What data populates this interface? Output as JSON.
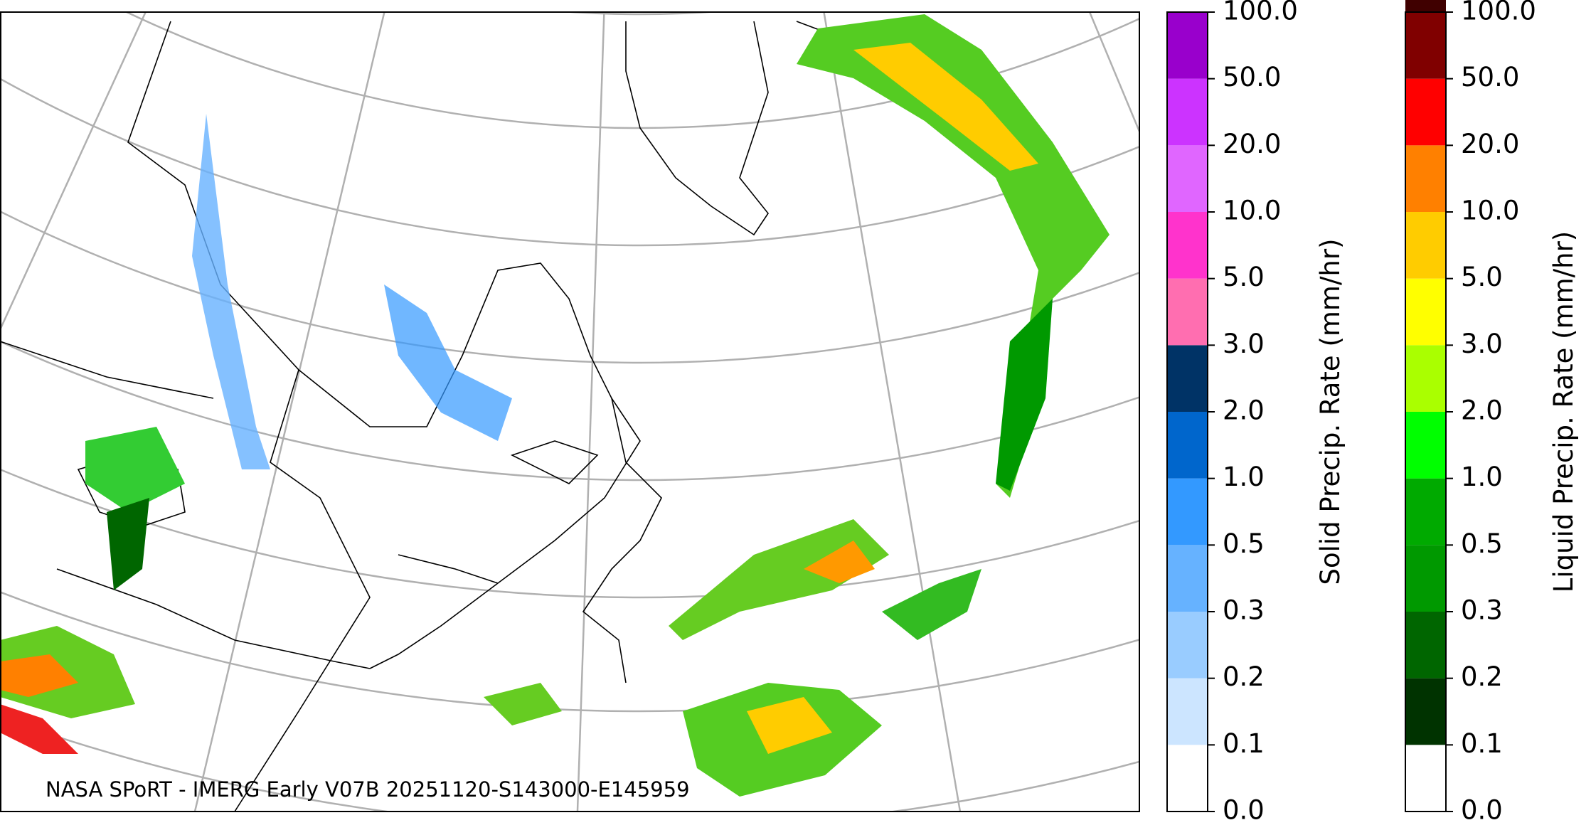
{
  "map": {
    "caption": "NASA SPoRT - IMERG Early V07B 20251120-S143000-E145959"
  },
  "colorbars": [
    {
      "label": "Solid Precip. Rate (mm/hr)",
      "ticks": [
        {
          "value": 0,
          "label": "0.0"
        },
        {
          "value": 0.1,
          "label": "0.1"
        },
        {
          "value": 0.2,
          "label": "0.2"
        },
        {
          "value": 0.3,
          "label": "0.3"
        },
        {
          "value": 0.5,
          "label": "0.5"
        },
        {
          "value": 1,
          "label": "1.0"
        },
        {
          "value": 2,
          "label": "2.0"
        },
        {
          "value": 3,
          "label": "3.0"
        },
        {
          "value": 5,
          "label": "5.0"
        },
        {
          "value": 10,
          "label": "10.0"
        },
        {
          "value": 20,
          "label": "20.0"
        },
        {
          "value": 50,
          "label": "50.0"
        },
        {
          "value": 100,
          "label": "100.0"
        }
      ],
      "colors": [
        "#ffffff",
        "#cce5ff",
        "#99ccff",
        "#66b2ff",
        "#3399ff",
        "#0066cc",
        "#003366",
        "#ff6eb0",
        "#ff33cc",
        "#e066ff",
        "#cc33ff",
        "#9900cc"
      ]
    },
    {
      "label": "Liquid Precip. Rate (mm/hr)",
      "ticks": [
        {
          "value": 0,
          "label": "0.0"
        },
        {
          "value": 0.1,
          "label": "0.1"
        },
        {
          "value": 0.2,
          "label": "0.2"
        },
        {
          "value": 0.3,
          "label": "0.3"
        },
        {
          "value": 0.5,
          "label": "0.5"
        },
        {
          "value": 1,
          "label": "1.0"
        },
        {
          "value": 2,
          "label": "2.0"
        },
        {
          "value": 3,
          "label": "3.0"
        },
        {
          "value": 5,
          "label": "5.0"
        },
        {
          "value": 10,
          "label": "10.0"
        },
        {
          "value": 20,
          "label": "20.0"
        },
        {
          "value": 50,
          "label": "50.0"
        },
        {
          "value": 100,
          "label": "100.0"
        }
      ],
      "colors": [
        "#ffffff",
        "#003300",
        "#006600",
        "#009900",
        "#00aa00",
        "#00ff00",
        "#aaff00",
        "#ffff00",
        "#ffcc00",
        "#ff8000",
        "#ff0000",
        "#800000",
        "#400000"
      ]
    }
  ]
}
